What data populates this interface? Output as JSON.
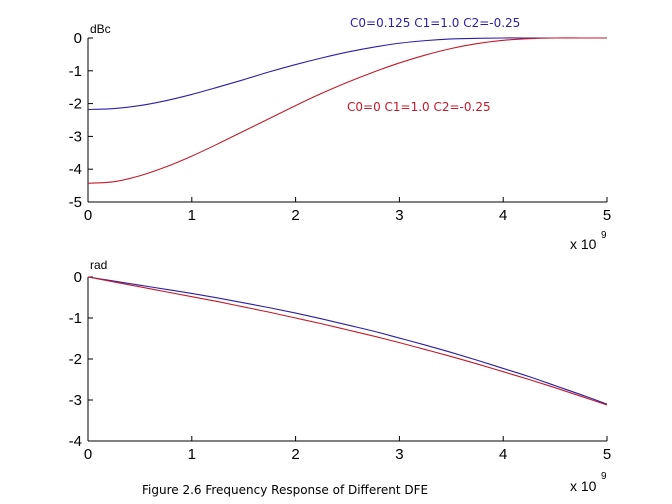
{
  "caption": "Figure 2.6 Frequency Response of Different DFE",
  "chart_data": [
    {
      "type": "line",
      "ylabel": "dBc",
      "x_exponent_base": "x 10",
      "x_exponent_power": "9",
      "xlim": [
        0,
        5
      ],
      "ylim": [
        -5,
        0
      ],
      "x_ticks": [
        0,
        1,
        2,
        3,
        4,
        5
      ],
      "y_ticks": [
        0,
        -1,
        -2,
        -3,
        -4,
        -5
      ],
      "x_tick_labels": [
        "0",
        "1",
        "2",
        "3",
        "4",
        "5"
      ],
      "y_tick_labels": [
        "0",
        "-1",
        "-2",
        "-3",
        "-4",
        "-5"
      ],
      "x": [
        0,
        0.25,
        0.5,
        0.75,
        1.0,
        1.25,
        1.5,
        1.75,
        2.0,
        2.25,
        2.5,
        2.75,
        3.0,
        3.25,
        3.5,
        3.75,
        4.0,
        4.25,
        4.5,
        4.75,
        5.0
      ],
      "series": [
        {
          "annotation": "C0=0.125 C1=1.0 C2=-0.25",
          "color": "#2b1fa8",
          "values": [
            -2.18,
            -2.15,
            -2.06,
            -1.91,
            -1.72,
            -1.5,
            -1.27,
            -1.03,
            -0.81,
            -0.61,
            -0.43,
            -0.28,
            -0.16,
            -0.08,
            -0.03,
            -0.01,
            0.0,
            0.0,
            0.0,
            0.0,
            0.0
          ]
        },
        {
          "annotation": "C0=0 C1=1.0 C2=-0.25",
          "color": "#c41a2a",
          "values": [
            -4.43,
            -4.38,
            -4.2,
            -3.93,
            -3.6,
            -3.23,
            -2.84,
            -2.45,
            -2.06,
            -1.69,
            -1.35,
            -1.04,
            -0.76,
            -0.52,
            -0.32,
            -0.17,
            -0.07,
            -0.02,
            0.0,
            0.0,
            0.0
          ]
        }
      ]
    },
    {
      "type": "line",
      "ylabel": "rad",
      "x_exponent_base": "x 10",
      "x_exponent_power": "9",
      "xlim": [
        0,
        5
      ],
      "ylim": [
        -4,
        0
      ],
      "x_ticks": [
        0,
        1,
        2,
        3,
        4,
        5
      ],
      "y_ticks": [
        0,
        -1,
        -2,
        -3,
        -4
      ],
      "x_tick_labels": [
        "0",
        "1",
        "2",
        "3",
        "4",
        "5"
      ],
      "y_tick_labels": [
        "0",
        "-1",
        "-2",
        "-3",
        "-4"
      ],
      "x": [
        0,
        0.25,
        0.5,
        0.75,
        1.0,
        1.25,
        1.5,
        1.75,
        2.0,
        2.25,
        2.5,
        2.75,
        3.0,
        3.25,
        3.5,
        3.75,
        4.0,
        4.25,
        4.5,
        4.75,
        5.0
      ],
      "series": [
        {
          "color": "#2b1fa8",
          "values": [
            0.0,
            -0.1,
            -0.2,
            -0.3,
            -0.4,
            -0.51,
            -0.63,
            -0.75,
            -0.88,
            -1.02,
            -1.17,
            -1.32,
            -1.49,
            -1.66,
            -1.84,
            -2.03,
            -2.23,
            -2.43,
            -2.65,
            -2.87,
            -3.1
          ]
        },
        {
          "color": "#c41a2a",
          "values": [
            0.0,
            -0.12,
            -0.24,
            -0.36,
            -0.48,
            -0.6,
            -0.73,
            -0.86,
            -1.0,
            -1.14,
            -1.29,
            -1.44,
            -1.6,
            -1.77,
            -1.94,
            -2.12,
            -2.31,
            -2.5,
            -2.7,
            -2.91,
            -3.12
          ]
        }
      ]
    }
  ]
}
